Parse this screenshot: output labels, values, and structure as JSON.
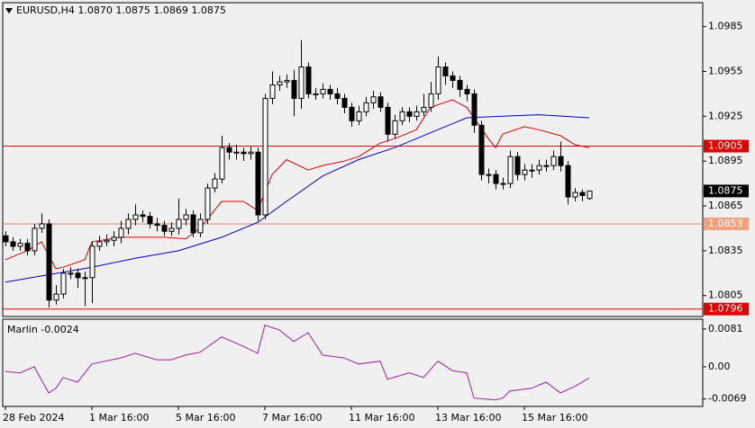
{
  "chart_data": {
    "type": "candlestick",
    "title": "EURUSD,H4 1.0870 1.0875 1.0869 1.0875",
    "categories": [
      "28 Feb 2024",
      null,
      null,
      null,
      null,
      null,
      null,
      null,
      null,
      null,
      null,
      null,
      "1 Mar 16:00",
      null,
      null,
      null,
      null,
      null,
      null,
      null,
      null,
      null,
      null,
      null,
      "5 Mar 16:00",
      null,
      null,
      null,
      null,
      null,
      null,
      null,
      null,
      null,
      null,
      null,
      "7 Mar 16:00",
      null,
      null,
      null,
      null,
      null,
      null,
      null,
      null,
      null,
      null,
      null,
      "11 Mar 16:00",
      null,
      null,
      null,
      null,
      null,
      null,
      null,
      null,
      null,
      null,
      null,
      "13 Mar 16:00",
      null,
      null,
      null,
      null,
      null,
      null,
      null,
      null,
      null,
      null,
      null,
      "15 Mar 16:00",
      null,
      null,
      null,
      null,
      null,
      null,
      null,
      null,
      null
    ],
    "open": [
      1.0845,
      1.0841,
      1.0838,
      1.084,
      1.0835,
      1.085,
      1.0853,
      1.0802,
      1.0806,
      1.082,
      1.082,
      1.0817,
      1.0817,
      1.0838,
      1.0841,
      1.0842,
      1.0844,
      1.085,
      1.0856,
      1.0859,
      1.0858,
      1.0853,
      1.0852,
      1.0848,
      1.085,
      1.0856,
      1.0859,
      1.0847,
      1.0856,
      1.0877,
      1.0883,
      1.0904,
      1.0901,
      1.0901,
      1.09,
      1.0901,
      1.0859,
      1.0937,
      1.0946,
      1.0948,
      1.0949,
      1.0937,
      1.0958,
      1.094,
      1.094,
      1.0943,
      1.094,
      1.0937,
      1.0931,
      1.0922,
      1.0928,
      1.0934,
      1.0938,
      1.0931,
      1.0913,
      1.0922,
      1.0928,
      1.0925,
      1.0928,
      1.0931,
      1.094,
      1.0958,
      1.0952,
      1.0949,
      1.0943,
      1.094,
      1.0919,
      1.0886,
      1.0886,
      1.088,
      1.088,
      1.0898,
      1.0886,
      1.0889,
      1.0889,
      1.0892,
      1.0892,
      1.0898,
      1.0892,
      1.0871,
      1.0874,
      1.087
    ],
    "high": [
      1.0848,
      1.0844,
      1.0843,
      1.0843,
      1.0853,
      1.086,
      1.0856,
      1.0812,
      1.0823,
      1.0824,
      1.0823,
      1.0821,
      1.0841,
      1.0845,
      1.0846,
      1.0848,
      1.0855,
      1.086,
      1.0866,
      1.0862,
      1.0861,
      1.0857,
      1.0855,
      1.0854,
      1.087,
      1.0863,
      1.0862,
      1.086,
      1.088,
      1.0887,
      1.0912,
      1.0907,
      1.0906,
      1.0904,
      1.0905,
      1.0904,
      1.094,
      1.0955,
      1.0952,
      1.0953,
      1.0956,
      1.0976,
      1.0961,
      1.0944,
      1.0947,
      1.0946,
      1.0944,
      1.094,
      1.0934,
      1.0932,
      1.0938,
      1.0942,
      1.0941,
      1.0934,
      1.0926,
      1.0931,
      1.0931,
      1.0932,
      1.094,
      1.0948,
      1.0965,
      1.0961,
      1.0955,
      1.0952,
      1.0946,
      1.0943,
      1.0922,
      1.089,
      1.0889,
      1.0884,
      1.0902,
      1.0901,
      1.0893,
      1.0893,
      1.0896,
      1.0896,
      1.0902,
      1.0908,
      1.0895,
      1.0877,
      1.0876,
      1.0875
    ],
    "low": [
      1.0838,
      1.0835,
      1.0835,
      1.0832,
      1.0832,
      1.0847,
      1.0797,
      1.0799,
      1.0803,
      1.0816,
      1.081,
      1.0798,
      1.08,
      1.0835,
      1.0838,
      1.0838,
      1.084,
      1.0846,
      1.0852,
      1.0854,
      1.085,
      1.0848,
      1.0845,
      1.0845,
      1.0846,
      1.0852,
      1.0844,
      1.0844,
      1.0853,
      1.0874,
      1.088,
      1.0896,
      1.0896,
      1.0895,
      1.0896,
      1.0855,
      1.0856,
      1.0933,
      1.0942,
      1.0944,
      1.0925,
      1.093,
      1.0937,
      1.0936,
      1.0937,
      1.0936,
      1.0933,
      1.0927,
      1.0918,
      1.0919,
      1.0925,
      1.093,
      1.0928,
      1.0908,
      1.091,
      1.0919,
      1.0921,
      1.0922,
      1.0925,
      1.0928,
      1.0936,
      1.0946,
      1.0944,
      1.0938,
      1.0935,
      1.0914,
      1.0882,
      1.088,
      1.0876,
      1.0876,
      1.0877,
      1.0882,
      1.0882,
      1.0884,
      1.0886,
      1.0888,
      1.0889,
      1.0888,
      1.0866,
      1.0868,
      1.0868,
      1.0869
    ],
    "close": [
      1.0841,
      1.0838,
      1.084,
      1.0835,
      1.085,
      1.0853,
      1.0802,
      1.0806,
      1.082,
      1.082,
      1.0817,
      1.0817,
      1.0838,
      1.0841,
      1.0842,
      1.0844,
      1.085,
      1.0856,
      1.0859,
      1.0858,
      1.0853,
      1.0852,
      1.0848,
      1.085,
      1.0856,
      1.0859,
      1.0847,
      1.0856,
      1.0877,
      1.0883,
      1.0904,
      1.0901,
      1.0901,
      1.09,
      1.0901,
      1.0859,
      1.0937,
      1.0946,
      1.0948,
      1.0949,
      1.0937,
      1.0958,
      1.094,
      1.094,
      1.0943,
      1.094,
      1.0937,
      1.0931,
      1.0922,
      1.0928,
      1.0934,
      1.0938,
      1.0931,
      1.0913,
      1.0922,
      1.0928,
      1.0925,
      1.0928,
      1.0931,
      1.094,
      1.0958,
      1.0952,
      1.0949,
      1.0943,
      1.094,
      1.0919,
      1.0886,
      1.0886,
      1.088,
      1.088,
      1.0898,
      1.0886,
      1.0889,
      1.0889,
      1.0892,
      1.0892,
      1.0898,
      1.0892,
      1.0871,
      1.0874,
      1.0872,
      1.0875
    ],
    "up_color": "#ffffff",
    "down_color": "#000000",
    "ylim": [
      1.0791,
      1.1001
    ],
    "yticks": [
      1.0985,
      1.0955,
      1.0925,
      1.0895,
      1.0865,
      1.0835,
      1.0805
    ],
    "lines": [
      {
        "color": "#e00000",
        "x": [
          0,
          3,
          5,
          7,
          8,
          11,
          12,
          16,
          18,
          22,
          25,
          27,
          30,
          33,
          35,
          37,
          39,
          42,
          44,
          47,
          49,
          52,
          54,
          57,
          59,
          62,
          64,
          67,
          68,
          69,
          72,
          74,
          77,
          79,
          81
        ],
        "values": [
          1.0829,
          1.0835,
          1.0841,
          1.0823,
          1.0824,
          1.0829,
          1.0841,
          1.0844,
          1.0844,
          1.0844,
          1.0843,
          1.085,
          1.0868,
          1.0868,
          1.0862,
          1.0886,
          1.0896,
          1.0889,
          1.0892,
          1.0895,
          1.0898,
          1.0907,
          1.091,
          1.0916,
          1.0931,
          1.0936,
          1.0931,
          1.091,
          1.0904,
          1.0913,
          1.0918,
          1.0916,
          1.0912,
          1.0906,
          1.0904
        ]
      },
      {
        "color": "#0000c0",
        "x": [
          0,
          12,
          18,
          24,
          30,
          35,
          39,
          44,
          49,
          54,
          59,
          64,
          69,
          74,
          81
        ],
        "values": [
          1.0814,
          1.0824,
          1.083,
          1.0835,
          1.0844,
          1.0854,
          1.0868,
          1.0885,
          1.0896,
          1.0904,
          1.0914,
          1.0924,
          1.0925,
          1.0926,
          1.0924
        ]
      }
    ],
    "levels": [
      {
        "value": 1.0905,
        "color": "#e00000",
        "label_color": "#e00000"
      },
      {
        "value": 1.0853,
        "color": "#f08060",
        "label_color": "#f4a07c"
      },
      {
        "value": 1.0796,
        "color": "#e00000",
        "label_color": "#e00000"
      }
    ],
    "last_price": 1.0875,
    "indicator": {
      "name": "Marlin",
      "last_value": -0.0024,
      "color": "#a020a0",
      "x": [
        0,
        2,
        4,
        6,
        7,
        8,
        10,
        12,
        16,
        18,
        21,
        23,
        25,
        27,
        30,
        33,
        35,
        36,
        38,
        40,
        42,
        44,
        47,
        49,
        52,
        53,
        56,
        58,
        60,
        62,
        64,
        65,
        68,
        69,
        70,
        73,
        75,
        77,
        79,
        81
      ],
      "values": [
        -0.001,
        -0.0013,
        0.0,
        -0.0056,
        -0.0046,
        -0.0023,
        -0.0033,
        0.0006,
        0.0019,
        0.0029,
        0.0015,
        0.0015,
        0.0025,
        0.0031,
        0.0064,
        0.0044,
        0.0029,
        0.0089,
        0.0079,
        0.0054,
        0.0073,
        0.0025,
        0.0019,
        0.0006,
        0.0012,
        -0.0027,
        -0.0013,
        -0.0023,
        0.0012,
        -0.0008,
        -0.0013,
        -0.0067,
        -0.0071,
        -0.0067,
        -0.0052,
        -0.0046,
        -0.0033,
        -0.0056,
        -0.0042,
        -0.0024
      ],
      "ylim": [
        -0.0085,
        0.0102
      ],
      "yticks": [
        0.0081,
        {
          "value": 0,
          "label": "0.00"
        },
        -0.0069
      ]
    }
  }
}
